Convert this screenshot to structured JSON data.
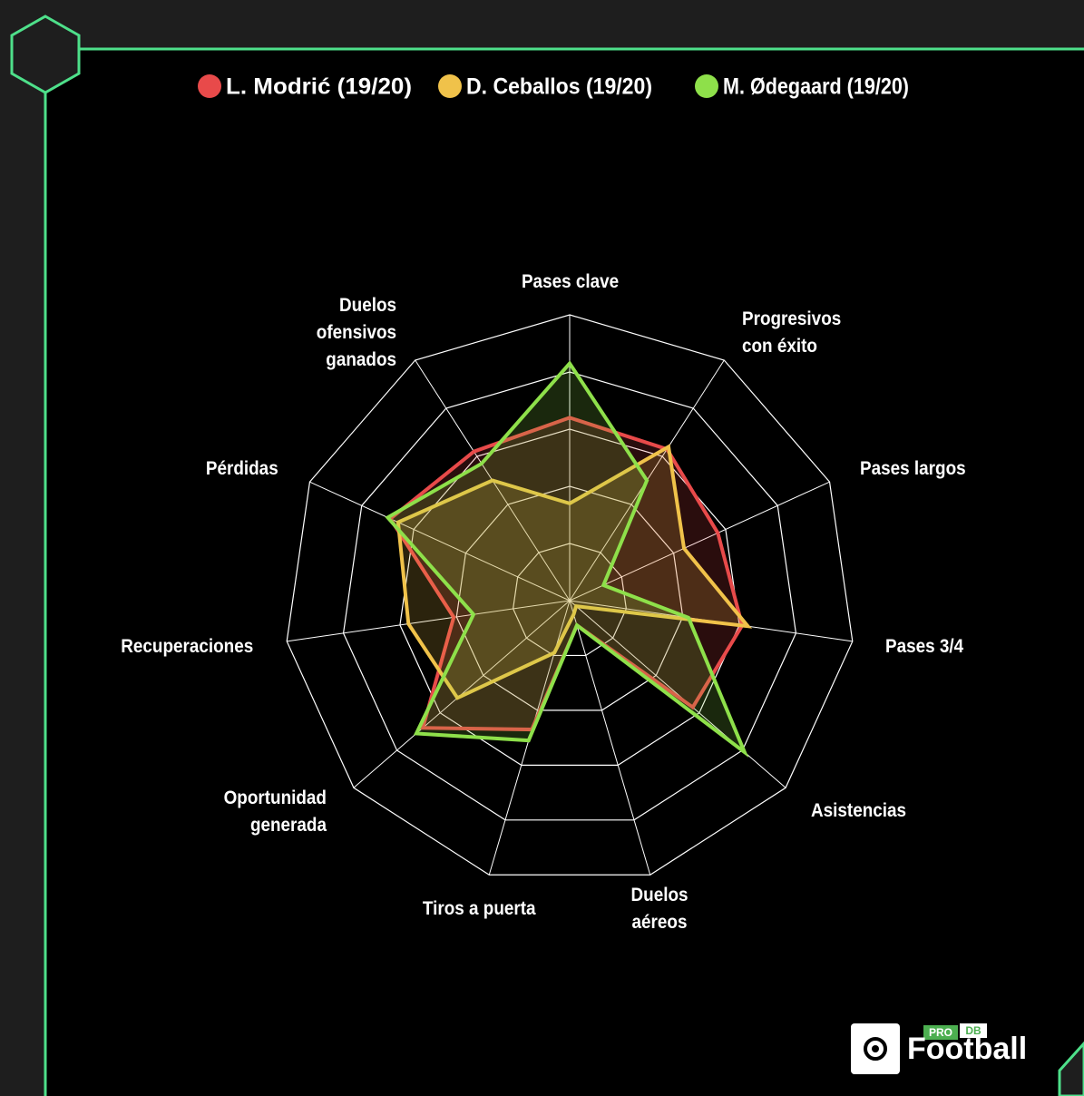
{
  "chart_data": {
    "type": "radar",
    "categories": [
      "Pases clave",
      "Progresivos\ncon éxito",
      "Pases largos",
      "Pases 3/4",
      "Asistencias",
      "Duelos\naéreos",
      "Tiros a puerta",
      "Oportunidad\ngenerada",
      "Recuperaciones",
      "Pérdidas",
      "Duelos\nofensivos\nganados"
    ],
    "rlim": [
      0,
      100
    ],
    "rings": 5,
    "series": [
      {
        "name": "L. Modrić (19/20)",
        "color": "#e84a4a",
        "values": [
          64,
          63,
          57,
          61,
          57,
          9,
          47,
          68,
          41,
          69,
          62
        ]
      },
      {
        "name": "D. Ceballos (19/20)",
        "color": "#f0c24a",
        "values": [
          34,
          64,
          44,
          63,
          3,
          5,
          19,
          52,
          57,
          66,
          50
        ]
      },
      {
        "name": "M. Ødegaard (19/20)",
        "color": "#8ee04a",
        "values": [
          83,
          50,
          13,
          42,
          81,
          9,
          51,
          71,
          34,
          70,
          57
        ]
      }
    ]
  },
  "logo": {
    "badge": "PRO",
    "badge2": "DB",
    "name": "Football"
  }
}
